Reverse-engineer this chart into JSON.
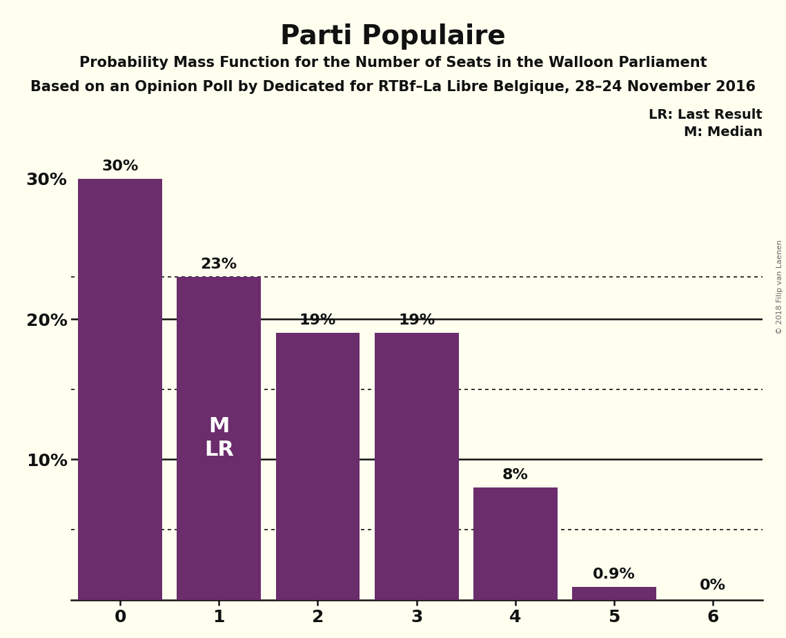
{
  "title": "Parti Populaire",
  "subtitle1": "Probability Mass Function for the Number of Seats in the Walloon Parliament",
  "subtitle2": "Based on an Opinion Poll by Dedicated for RTBf–La Libre Belgique, 28–24 November 2016",
  "watermark": "© 2018 Filip van Laenen",
  "categories": [
    0,
    1,
    2,
    3,
    4,
    5,
    6
  ],
  "values": [
    30,
    23,
    19,
    19,
    8,
    0.9,
    0
  ],
  "bar_color": "#6b2d6b",
  "background_color": "#fffff0",
  "bar_labels": [
    "30%",
    "23%",
    "19%",
    "19%",
    "8%",
    "0.9%",
    "0%"
  ],
  "lr_label": "LR: Last Result",
  "median_label": "M: Median",
  "solid_lines": [
    20,
    10
  ],
  "dotted_lines": [
    23,
    15,
    5
  ],
  "ylim": [
    0,
    35
  ],
  "yticks": [
    10,
    20,
    30
  ],
  "ytick_labels": [
    "10%",
    "20%",
    "30%"
  ],
  "title_fontsize": 28,
  "subtitle1_fontsize": 15,
  "subtitle2_fontsize": 15,
  "tick_fontsize": 18,
  "bar_label_fontsize": 16,
  "inner_label_fontsize": 22,
  "legend_fontsize": 14,
  "watermark_fontsize": 8
}
